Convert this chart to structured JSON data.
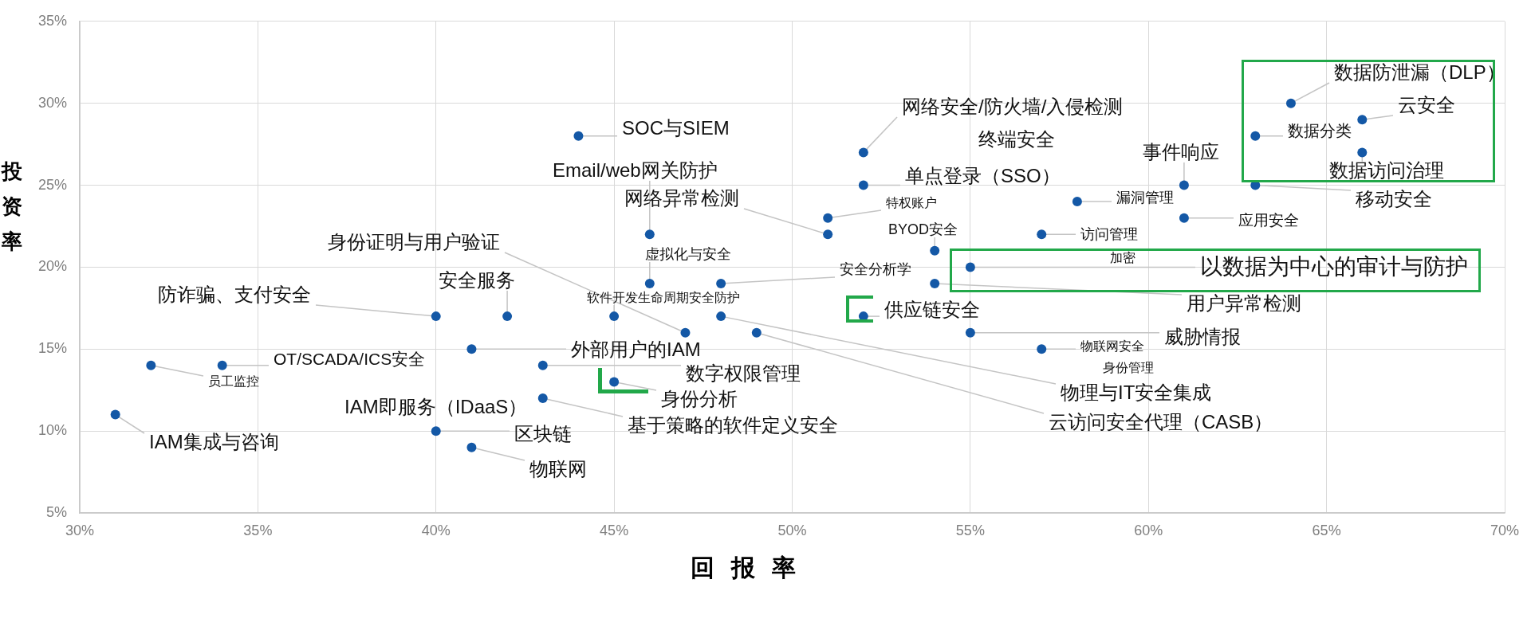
{
  "chart_data": {
    "type": "scatter",
    "xlabel": "回报率",
    "ylabel": "投资率",
    "xlim": [
      30,
      70
    ],
    "xticks": [
      {
        "value": 30,
        "label": "30%"
      },
      {
        "value": 35,
        "label": "35%"
      },
      {
        "value": 40,
        "label": "40%"
      },
      {
        "value": 45,
        "label": "45%"
      },
      {
        "value": 50,
        "label": "50%"
      },
      {
        "value": 55,
        "label": "55%"
      },
      {
        "value": 60,
        "label": "60%"
      },
      {
        "value": 65,
        "label": "65%"
      },
      {
        "value": 70,
        "label": "70%"
      }
    ],
    "ylim": [
      5,
      35
    ],
    "yticks": [
      {
        "value": 5,
        "label": "5%"
      },
      {
        "value": 10,
        "label": "10%"
      },
      {
        "value": 15,
        "label": "15%"
      },
      {
        "value": 20,
        "label": "20%"
      },
      {
        "value": 25,
        "label": "25%"
      },
      {
        "value": 30,
        "label": "30%"
      },
      {
        "value": 35,
        "label": "35%"
      }
    ],
    "grid": true,
    "marker": "circle",
    "series": [
      {
        "color": "#1458a6",
        "x": [
          31,
          32,
          34,
          40,
          40,
          41,
          41,
          42,
          43,
          43,
          44,
          45,
          45,
          46,
          46,
          47,
          48,
          48,
          49,
          51,
          51,
          52,
          52,
          52,
          54,
          54,
          55,
          55,
          57,
          57,
          58,
          61,
          61,
          63,
          63,
          64,
          66,
          66
        ],
        "values": [
          11,
          14,
          14,
          17,
          10,
          15,
          9,
          17,
          14,
          12,
          28,
          17,
          13,
          22,
          19,
          16,
          19,
          17,
          16,
          23,
          22,
          27,
          25,
          17,
          21,
          19,
          20,
          16,
          22,
          15,
          24,
          25,
          23,
          28,
          25,
          30,
          29,
          27
        ]
      }
    ],
    "annotations": [
      {
        "text": "数据防泄漏（DLP）",
        "x": 64,
        "y": 30
      },
      {
        "text": "云安全",
        "x": 66,
        "y": 29
      },
      {
        "text": "数据分类",
        "x": 63,
        "y": 28
      },
      {
        "text": "数据访问治理",
        "x": 66,
        "y": 27
      },
      {
        "text": "移动安全",
        "x": 63,
        "y": 25
      },
      {
        "text": "网络安全/防火墙/入侵检测",
        "x": 52,
        "y": 27
      },
      "终端安全",
      {
        "text": "事件响应",
        "x": 61,
        "y": 25
      },
      {
        "text": "SOC与SIEM",
        "x": 44,
        "y": 28
      },
      {
        "text": "Email/web网关防护",
        "x": 46,
        "y": 22
      },
      {
        "text": "单点登录（SSO）",
        "x": 52,
        "y": 25
      },
      {
        "text": "网络异常检测",
        "x": 51,
        "y": 22
      },
      {
        "text": "特权账户",
        "x": 51,
        "y": 23
      },
      {
        "text": "漏洞管理",
        "x": 58,
        "y": 24
      },
      {
        "text": "应用安全",
        "x": 61,
        "y": 23
      },
      {
        "text": "身份证明与用户验证",
        "x": 47,
        "y": 16
      },
      {
        "text": "BYOD安全",
        "x": 54,
        "y": 21
      },
      {
        "text": "访问管理",
        "x": 57,
        "y": 22
      },
      {
        "text": "虚拟化与安全",
        "x": 46,
        "y": 19
      },
      "加密",
      {
        "text": "以数据为中心的审计与防护",
        "x": 55,
        "y": 20
      },
      {
        "text": "安全分析学",
        "x": 48,
        "y": 19
      },
      {
        "text": "安全服务",
        "x": 42,
        "y": 17
      },
      {
        "text": "防诈骗、支付安全",
        "x": 40,
        "y": 17
      },
      {
        "text": "软件开发生命周期安全防护",
        "x": 45,
        "y": 17
      },
      {
        "text": "供应链安全",
        "x": 52,
        "y": 17
      },
      {
        "text": "用户异常检测",
        "x": 54,
        "y": 19
      },
      {
        "text": "威胁情报",
        "x": 55,
        "y": 16
      },
      {
        "text": "OT/SCADA/ICS安全",
        "x": 34,
        "y": 14
      },
      {
        "text": "物联网安全",
        "x": 57,
        "y": 15
      },
      {
        "text": "外部用户的IAM",
        "x": 41,
        "y": 15
      },
      {
        "text": "员工监控",
        "x": 32,
        "y": 14
      },
      "身份管理",
      {
        "text": "数字权限管理",
        "x": 43,
        "y": 14
      },
      {
        "text": "身份分析",
        "x": 45,
        "y": 13
      },
      {
        "text": "物理与IT安全集成",
        "x": 48,
        "y": 17
      },
      "IAM即服务（IDaaS）",
      {
        "text": "云访问安全代理（CASB）",
        "x": 49,
        "y": 16
      },
      {
        "text": "基于策略的软件定义安全",
        "x": 43,
        "y": 12
      },
      {
        "text": "IAM集成与咨询",
        "x": 31,
        "y": 11
      },
      {
        "text": "区块链",
        "x": 40,
        "y": 10
      },
      {
        "text": "物联网",
        "x": 41,
        "y": 9
      }
    ]
  }
}
